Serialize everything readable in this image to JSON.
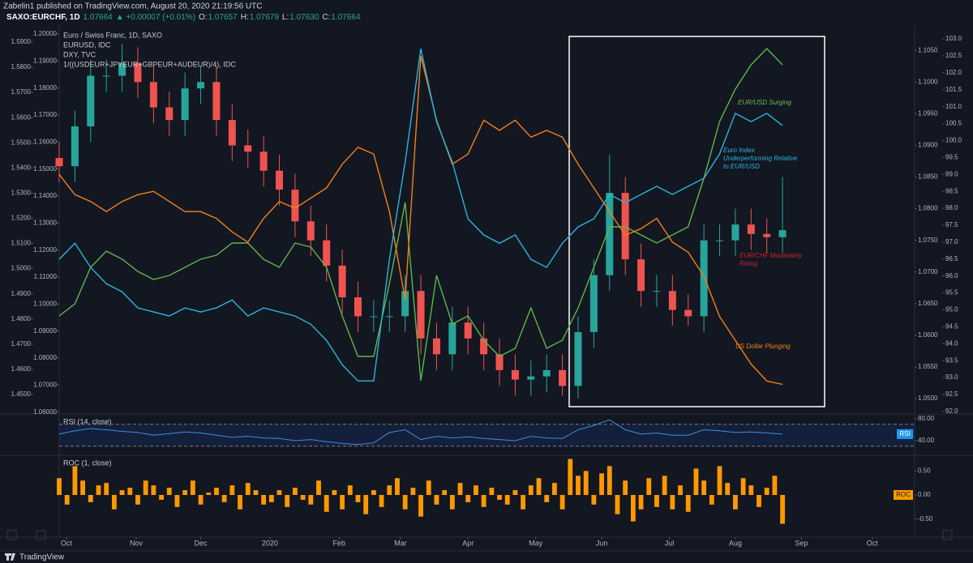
{
  "header": {
    "published": "Zabelin1 published on TradingView.com, August 20, 2020 21:19:56 UTC",
    "symbol": "SAXO:EURCHF, 1D",
    "price": "1.07664",
    "change": "▲ +0.00007 (+0.01%)",
    "ohlc": [
      {
        "label": "O:",
        "value": "1.07657"
      },
      {
        "label": "H:",
        "value": "1.07679"
      },
      {
        "label": "L:",
        "value": "1.07630"
      },
      {
        "label": "C:",
        "value": "1.07664"
      }
    ]
  },
  "footer": "TradingView",
  "chart_data": [
    {
      "type": "candlestick",
      "xlim": [
        0,
        54.4
      ],
      "xticks": [
        {
          "value": 0.46,
          "label": "Oct"
        },
        {
          "value": 4.9,
          "label": "Nov"
        },
        {
          "value": 9.0,
          "label": "Dec"
        },
        {
          "value": 13.4,
          "label": "2020"
        },
        {
          "value": 17.8,
          "label": "Feb"
        },
        {
          "value": 21.7,
          "label": "Mar"
        },
        {
          "value": 26.0,
          "label": "Apr"
        },
        {
          "value": 30.3,
          "label": "May"
        },
        {
          "value": 34.5,
          "label": "Jun"
        },
        {
          "value": 38.8,
          "label": "Jul"
        },
        {
          "value": 43.0,
          "label": "Aug"
        },
        {
          "value": 47.2,
          "label": "Sep"
        },
        {
          "value": 51.7,
          "label": "Oct"
        }
      ],
      "ylim": [
        1.0477,
        1.1081
      ],
      "yticks": [
        {
          "value": 1.05,
          "label": "1.0500"
        },
        {
          "value": 1.055,
          "label": "1.0550"
        },
        {
          "value": 1.06,
          "label": "1.0600"
        },
        {
          "value": 1.065,
          "label": "1.0650"
        },
        {
          "value": 1.07,
          "label": "1.0700"
        },
        {
          "value": 1.075,
          "label": "1.0750"
        },
        {
          "value": 1.08,
          "label": "1.0800"
        },
        {
          "value": 1.085,
          "label": "1.0850"
        },
        {
          "value": 1.09,
          "label": "1.0900"
        },
        {
          "value": 1.095,
          "label": "1.0950"
        },
        {
          "value": 1.1,
          "label": "1.1000"
        },
        {
          "value": 1.105,
          "label": "1.1050"
        }
      ],
      "y2lim": [
        91.95,
        103.24
      ],
      "y2ticks": [
        {
          "value": 92,
          "label": "92.0"
        },
        92.5,
        {
          "value": 93,
          "label": "93.0"
        },
        93.5,
        {
          "value": 94,
          "label": "94.0"
        },
        94.5,
        {
          "value": 95,
          "label": "95.0"
        },
        95.5,
        {
          "value": 96,
          "label": "96.0"
        },
        96.5,
        {
          "value": 97,
          "label": "97.0"
        },
        97.5,
        {
          "value": 98,
          "label": "98.0"
        },
        98.5,
        {
          "value": 99,
          "label": "99.0"
        },
        99.5,
        {
          "value": 100,
          "label": "100.0"
        },
        100.5,
        {
          "value": 101,
          "label": "101.0"
        },
        101.5,
        {
          "value": 102,
          "label": "102.0"
        },
        102.5,
        {
          "value": 103,
          "label": "103.0"
        }
      ],
      "y3lim": [
        1.0596,
        1.2012
      ],
      "y3ticks": [
        {
          "value": 1.06,
          "label": "1.06000"
        },
        {
          "value": 1.07,
          "label": "1.07000"
        },
        {
          "value": 1.08,
          "label": "1.08000"
        },
        {
          "value": 1.09,
          "label": "1.09000"
        },
        {
          "value": 1.1,
          "label": "1.10000"
        },
        {
          "value": 1.11,
          "label": "1.11000"
        },
        {
          "value": 1.12,
          "label": "1.12000"
        },
        {
          "value": 1.13,
          "label": "1.13000"
        },
        {
          "value": 1.14,
          "label": "1.14000"
        },
        {
          "value": 1.15,
          "label": "1.15000"
        },
        {
          "value": 1.16,
          "label": "1.16000"
        },
        {
          "value": 1.17,
          "label": "1.17000"
        },
        {
          "value": 1.18,
          "label": "1.18000"
        },
        {
          "value": 1.19,
          "label": "1.19000"
        },
        {
          "value": 1.2,
          "label": "1.20000"
        }
      ],
      "y4lim": [
        1.4426,
        1.5945
      ],
      "y4ticks": [
        {
          "value": 1.45,
          "label": "1.4500"
        },
        {
          "value": 1.46,
          "label": "1.4600"
        },
        {
          "value": 1.47,
          "label": "1.4700"
        },
        {
          "value": 1.48,
          "label": "1.4800"
        },
        {
          "value": 1.49,
          "label": "1.4900"
        },
        {
          "value": 1.5,
          "label": "1.5000"
        },
        {
          "value": 1.51,
          "label": "1.5100"
        },
        {
          "value": 1.52,
          "label": "1.5200"
        },
        {
          "value": 1.53,
          "label": "1.5300"
        },
        {
          "value": 1.54,
          "label": "1.5400"
        },
        {
          "value": 1.55,
          "label": "1.5500"
        },
        {
          "value": 1.56,
          "label": "1.5600"
        },
        {
          "value": 1.57,
          "label": "1.5700"
        },
        {
          "value": 1.58,
          "label": "1.5800"
        },
        {
          "value": 1.59,
          "label": "1.5900"
        }
      ],
      "series": [
        {
          "name": "Euro / Swiss Franc, 1D, SAXO",
          "type": "candlestick",
          "axis": "y",
          "up_color": "#26a69a",
          "down_color": "#ef5350",
          "open": [
            1.088,
            1.0867,
            1.093,
            1.101,
            1.101,
            1.103,
            1.1,
            1.096,
            1.094,
            1.099,
            1.1,
            1.094,
            1.09,
            1.089,
            1.086,
            1.083,
            1.078,
            1.075,
            1.071,
            1.066,
            1.063,
            1.063,
            1.063,
            1.067,
            1.0595,
            1.057,
            1.062,
            1.0595,
            1.057,
            1.0545,
            1.053,
            1.0535,
            1.0545,
            1.052,
            1.0605,
            1.0695,
            1.0825,
            1.072,
            1.067,
            1.067,
            1.064,
            1.063,
            1.075,
            1.075,
            1.0775,
            1.076,
            1.0755
          ],
          "high": [
            1.0905,
            1.0955,
            1.1035,
            1.1035,
            1.106,
            1.1055,
            1.1025,
            1.0985,
            1.1015,
            1.1025,
            1.1025,
            1.0965,
            1.0925,
            1.0915,
            1.0885,
            1.0855,
            1.0805,
            1.0775,
            1.0735,
            1.0685,
            1.0655,
            1.0655,
            1.0695,
            1.0695,
            1.062,
            1.0645,
            1.0645,
            1.062,
            1.0595,
            1.057,
            1.056,
            1.057,
            1.057,
            1.063,
            1.072,
            1.0885,
            1.085,
            1.0745,
            1.0695,
            1.0695,
            1.0665,
            1.0775,
            1.0775,
            1.08,
            1.08,
            1.0785,
            1.085
          ],
          "low": [
            1.0842,
            1.0842,
            1.0905,
            1.0985,
            1.0985,
            1.0975,
            1.0935,
            1.0915,
            1.0915,
            1.0965,
            1.0915,
            1.0875,
            1.0865,
            1.0835,
            1.0805,
            1.0755,
            1.0725,
            1.0685,
            1.0635,
            1.0605,
            1.0605,
            1.0605,
            1.0605,
            1.057,
            1.0545,
            1.0545,
            1.057,
            1.0545,
            1.052,
            1.0505,
            1.0505,
            1.051,
            1.0505,
            1.05,
            1.058,
            1.067,
            1.0695,
            1.0645,
            1.0645,
            1.0615,
            1.0615,
            1.0605,
            1.0725,
            1.0725,
            1.0735,
            1.073,
            1.073
          ],
          "close": [
            1.0867,
            1.093,
            1.101,
            1.101,
            1.103,
            1.1,
            1.096,
            1.094,
            1.099,
            1.1,
            1.094,
            1.09,
            1.089,
            1.086,
            1.083,
            1.078,
            1.075,
            1.071,
            1.066,
            1.063,
            1.063,
            1.063,
            1.067,
            1.0595,
            1.057,
            1.062,
            1.0595,
            1.057,
            1.0545,
            1.053,
            1.0535,
            1.0545,
            1.052,
            1.0605,
            1.0695,
            1.0825,
            1.072,
            1.067,
            1.067,
            1.064,
            1.063,
            1.075,
            1.075,
            1.0775,
            1.076,
            1.0755,
            1.0766
          ]
        },
        {
          "name": "EURUSD, IDC",
          "type": "line",
          "axis": "y3",
          "color": "#5fb54c",
          "values": [
            1.0956,
            1.1001,
            1.1136,
            1.1196,
            1.1166,
            1.1121,
            1.1091,
            1.1106,
            1.1136,
            1.1166,
            1.1181,
            1.1226,
            1.1226,
            1.1166,
            1.1136,
            1.1226,
            1.1211,
            1.1136,
            1.0956,
            1.0806,
            1.0806,
            1.1076,
            1.1376,
            1.0716,
            1.1106,
            1.0926,
            1.0956,
            1.0866,
            1.0806,
            1.0836,
            1.0986,
            1.0836,
            1.0866,
            1.0986,
            1.1136,
            1.1286,
            1.1286,
            1.1256,
            1.1226,
            1.1256,
            1.1286,
            1.1466,
            1.1676,
            1.1796,
            1.1886,
            1.1946,
            1.1886
          ]
        },
        {
          "name": "DXY, TVC",
          "type": "line",
          "axis": "y2",
          "color": "#f57f17",
          "values": [
            99.0,
            98.4,
            98.2,
            97.9,
            98.2,
            98.4,
            98.5,
            98.2,
            97.9,
            97.9,
            97.7,
            97.3,
            97.0,
            97.7,
            98.2,
            98.0,
            98.3,
            98.6,
            99.3,
            99.8,
            99.6,
            97.9,
            95.3,
            102.5,
            100.6,
            99.3,
            99.6,
            100.6,
            100.3,
            100.6,
            100.1,
            100.3,
            100.1,
            99.3,
            98.6,
            97.9,
            97.2,
            97.4,
            97.7,
            97.0,
            96.7,
            96.0,
            94.8,
            94.1,
            93.4,
            92.9,
            92.8
          ]
        },
        {
          "name": "1/((USDEUR+JPYEUR+GBPEUR+AUDEUR)/4), IDC",
          "type": "line",
          "axis": "y4",
          "color": "#29b6d8",
          "values": [
            1.5037,
            1.5101,
            1.5005,
            1.494,
            1.4908,
            1.4844,
            1.4828,
            1.4812,
            1.4844,
            1.4828,
            1.4844,
            1.4876,
            1.4812,
            1.4844,
            1.4828,
            1.4812,
            1.4779,
            1.4715,
            1.4618,
            1.4554,
            1.4554,
            1.5037,
            1.5423,
            1.5874,
            1.5584,
            1.5423,
            1.5198,
            1.5134,
            1.5101,
            1.5134,
            1.5037,
            1.5005,
            1.5101,
            1.5166,
            1.5198,
            1.5295,
            1.5262,
            1.5295,
            1.5327,
            1.5295,
            1.5327,
            1.5359,
            1.5456,
            1.5617,
            1.5584,
            1.5617,
            1.5568
          ]
        }
      ],
      "annotations": [
        {
          "text": [
            "EUR/USD Surging"
          ],
          "color": "#6cbf4f"
        },
        {
          "text": [
            "Euro Index",
            "Underperforming Relative",
            "to EUR/USD"
          ],
          "color": "#29b6d8"
        },
        {
          "text": [
            "EUR/CHF Moderately",
            "Rising"
          ],
          "color": "#c62828"
        },
        {
          "text": [
            "US Dollar Plunging"
          ],
          "color": "#f57f17"
        }
      ]
    },
    {
      "type": "line",
      "title": "RSI (14, close)",
      "tag": "RSI",
      "color": "#3a8fd9",
      "ylim": [
        13.3,
        87.4
      ],
      "yticks": [
        {
          "value": 40,
          "label": "40.00"
        },
        {
          "value": 80,
          "label": "80.00"
        }
      ],
      "bands": [
        30,
        70
      ],
      "values": [
        52,
        58,
        62,
        60,
        57,
        55,
        50,
        53,
        56,
        54,
        50,
        46,
        48,
        45,
        44,
        40,
        42,
        38,
        35,
        33,
        36,
        55,
        60,
        42,
        48,
        45,
        47,
        44,
        42,
        40,
        48,
        45,
        44,
        60,
        68,
        78,
        60,
        52,
        54,
        50,
        50,
        60,
        58,
        55,
        56,
        54,
        52
      ]
    },
    {
      "type": "bar",
      "title": "ROC (1, close)",
      "tag": "ROC",
      "color": "#ff9800",
      "ylim": [
        -0.86,
        0.81
      ],
      "yticks": [
        {
          "value": 0.5,
          "label": "0.50"
        },
        {
          "value": 0,
          "label": "0.00"
        },
        {
          "value": -0.5,
          "label": "-0.50"
        }
      ],
      "values": [
        0.35,
        -0.2,
        0.6,
        0.3,
        -0.15,
        0.2,
        0.25,
        -0.3,
        0.1,
        0.15,
        -0.2,
        0.3,
        0.2,
        -0.1,
        0.15,
        -0.25,
        0.1,
        0.3,
        -0.2,
        0.05,
        0.15,
        -0.15,
        0.2,
        -0.3,
        0.25,
        0.1,
        -0.2,
        -0.15,
        0.1,
        -0.25,
        0.15,
        -0.1,
        -0.2,
        0.3,
        -0.35,
        0.1,
        -0.3,
        0.2,
        -0.15,
        -0.4,
        0.1,
        -0.25,
        0.2,
        0.35,
        -0.3,
        0.15,
        -0.45,
        0.3,
        -0.2,
        0.1,
        -0.3,
        0.25,
        -0.15,
        0.2,
        -0.25,
        0.15,
        -0.1,
        -0.2,
        0.1,
        -0.3,
        0.2,
        0.35,
        -0.15,
        0.25,
        -0.3,
        0.75,
        0.4,
        0.5,
        -0.2,
        0.45,
        0.6,
        -0.4,
        0.3,
        -0.55,
        -0.3,
        0.35,
        -0.25,
        0.4,
        -0.3,
        0.2,
        -0.35,
        0.55,
        0.3,
        -0.2,
        0.6,
        0.25,
        -0.3,
        0.35,
        0.2,
        -0.25,
        0.15,
        0.4,
        -0.6
      ]
    }
  ]
}
